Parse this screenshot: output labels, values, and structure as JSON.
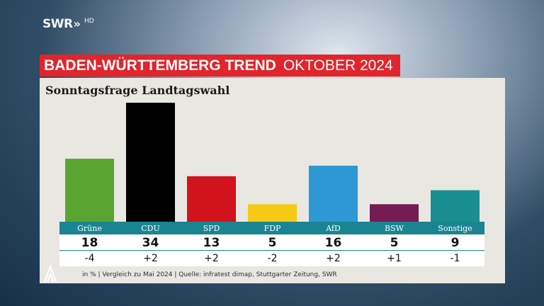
{
  "broadcaster": {
    "name": "SWR",
    "chevrons": "»",
    "quality": "HD"
  },
  "header": {
    "title": "BADEN-WÜRTTEMBERG TREND",
    "period": "OKTOBER 2024"
  },
  "subtitle": "Sonntagsfrage Landtagswahl",
  "footer": "in % | Vergleich zu Mai 2024 | Quelle: infratest dimap, Stuttgarter Zeitung, SWR",
  "chart_data": {
    "type": "bar",
    "title": "Sonntagsfrage Landtagswahl",
    "unit": "%",
    "categories": [
      "Grüne",
      "CDU",
      "SPD",
      "FDP",
      "AfD",
      "BSW",
      "Sonstige"
    ],
    "values": [
      18,
      34,
      13,
      5,
      16,
      5,
      9
    ],
    "changes": [
      "-4",
      "+2",
      "+2",
      "-2",
      "+2",
      "+1",
      "-1"
    ],
    "colors": [
      "#5aa532",
      "#000000",
      "#d2121c",
      "#f6c914",
      "#2e98d4",
      "#751b53",
      "#1a8f91"
    ],
    "ylim": [
      0,
      34
    ]
  }
}
